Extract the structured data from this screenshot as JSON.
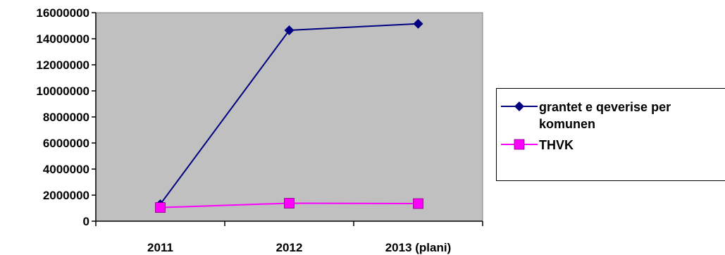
{
  "chart_data": {
    "type": "line",
    "categories": [
      "2011",
      "2012",
      "2013 (plani)"
    ],
    "series": [
      {
        "name": "grantet e qeverise per komunen",
        "values": [
          1300000,
          14650000,
          15150000
        ],
        "color": "#000080",
        "marker": "diamond"
      },
      {
        "name": "THVK",
        "values": [
          1050000,
          1380000,
          1350000
        ],
        "color": "#ff00ff",
        "marker": "square"
      }
    ],
    "yticks": [
      "0",
      "2000000",
      "4000000",
      "6000000",
      "8000000",
      "10000000",
      "12000000",
      "14000000",
      "16000000"
    ],
    "ylim": [
      0,
      16000000
    ],
    "grid": false,
    "plot_background": "#c0c0c0",
    "legend_position": "right"
  }
}
